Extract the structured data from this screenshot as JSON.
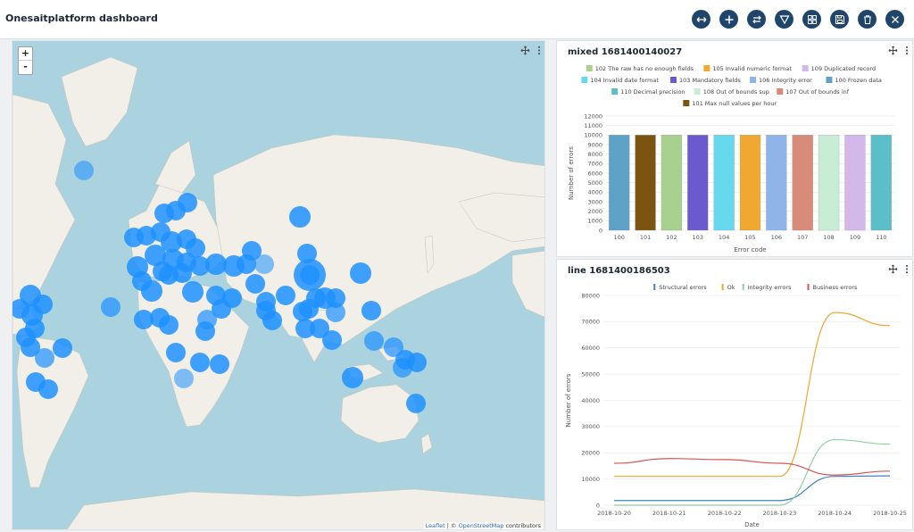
{
  "header": {
    "title": "Onesaitplatform dashboard",
    "buttons": [
      {
        "name": "expand-button",
        "icon": "arrows-horizontal-icon"
      },
      {
        "name": "add-button",
        "icon": "plus-icon"
      },
      {
        "name": "transfer-button",
        "icon": "transfer-arrows-icon"
      },
      {
        "name": "filter-button",
        "icon": "filter-icon"
      },
      {
        "name": "layout-button",
        "icon": "grid-icon"
      },
      {
        "name": "save-button",
        "icon": "floppy-disk-icon"
      },
      {
        "name": "delete-button",
        "icon": "trash-icon"
      },
      {
        "name": "close-button",
        "icon": "close-icon"
      }
    ],
    "button_color": "#20456b"
  },
  "map": {
    "zoom_in": "+",
    "zoom_out": "-",
    "attribution_leaflet": "Leaflet",
    "attribution_sep": " | © ",
    "attribution_osm": "OpenStreetMap",
    "attribution_tail": " contributors",
    "marker_color": "#1e90ff",
    "water_color": "#aad3df",
    "land_color": "#f2efe9"
  },
  "mixed_panel": {
    "title": "mixed  1681400140027",
    "chart_data": {
      "type": "bar",
      "categories": [
        "100",
        "101",
        "102",
        "103",
        "104",
        "105",
        "106",
        "107",
        "108",
        "109",
        "110"
      ],
      "values": [
        10000,
        10000,
        10000,
        10000,
        10000,
        10000,
        10000,
        10000,
        10000,
        10000,
        10000
      ],
      "colors": [
        "#5fa2c8",
        "#7a5410",
        "#a9d18e",
        "#6a5acd",
        "#66d9ef",
        "#f0a830",
        "#8fb4ea",
        "#d98b7a",
        "#c8edd6",
        "#d3b8ec",
        "#5bbfc9"
      ],
      "legend": [
        {
          "label": "102 The raw has no enough fields",
          "color": "#a9d18e"
        },
        {
          "label": "105 Invalid numeric format",
          "color": "#f0a830"
        },
        {
          "label": "109 Duplicated record",
          "color": "#d3b8ec"
        },
        {
          "label": "104 Invalid date format",
          "color": "#66d9ef"
        },
        {
          "label": "103 Mandatory fields",
          "color": "#6a5acd"
        },
        {
          "label": "106 Integrity error",
          "color": "#8fb4ea"
        },
        {
          "label": "100 Frozen data",
          "color": "#5fa2c8"
        },
        {
          "label": "110 Decimal precision",
          "color": "#5bbfc9"
        },
        {
          "label": "108 Out of bounds sup",
          "color": "#c8edd6"
        },
        {
          "label": "107 Out of bounds inf",
          "color": "#d98b7a"
        },
        {
          "label": "101 Max null values per hour",
          "color": "#7a5410"
        }
      ],
      "xlabel": "Error code",
      "ylabel": "Number of errors",
      "ylim": [
        0,
        12000
      ],
      "yticks": [
        0,
        1000,
        2000,
        3000,
        4000,
        5000,
        6000,
        7000,
        8000,
        9000,
        10000,
        11000,
        12000
      ]
    }
  },
  "line_panel": {
    "title": "line  1681400186503",
    "chart_data": {
      "type": "line",
      "x": [
        "2018-10-20",
        "2018-10-21",
        "2018-10-22",
        "2018-10-23",
        "2018-10-24",
        "2018-10-25"
      ],
      "series": [
        {
          "name": "Structural errors",
          "color": "#3d82c4",
          "values": [
            1800,
            1800,
            1800,
            1800,
            11000,
            11200
          ]
        },
        {
          "name": "Ok",
          "color": "#f0a830",
          "values": [
            11000,
            11000,
            11000,
            11000,
            73500,
            68500
          ]
        },
        {
          "name": "Integrity errors",
          "color": "#8fd19e",
          "values": [
            0,
            0,
            0,
            0,
            25000,
            23300
          ]
        },
        {
          "name": "Business errors",
          "color": "#d9534f",
          "values": [
            16000,
            17800,
            17400,
            16000,
            11500,
            13000
          ]
        }
      ],
      "xlabel": "Date",
      "ylabel": "Number of errors",
      "ylim": [
        0,
        80000
      ],
      "yticks": [
        0,
        10000,
        20000,
        30000,
        40000,
        50000,
        60000,
        70000,
        80000
      ]
    }
  }
}
